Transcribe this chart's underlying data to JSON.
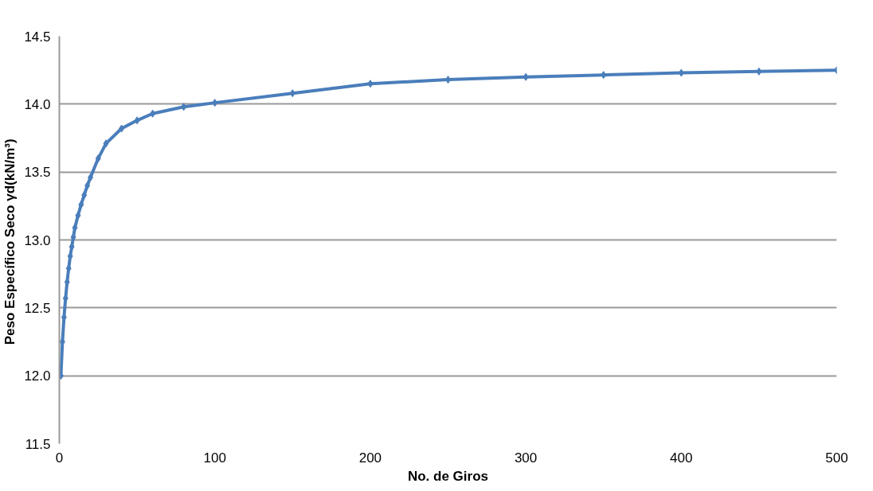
{
  "chart_data": {
    "type": "line",
    "xlabel": "No. de Giros",
    "ylabel": "Peso Específico  Seco γd(kN/m³)",
    "x": [
      1,
      2,
      3,
      4,
      5,
      6,
      7,
      8,
      9,
      10,
      12,
      14,
      16,
      18,
      20,
      25,
      30,
      40,
      50,
      60,
      80,
      100,
      150,
      200,
      250,
      300,
      350,
      400,
      450,
      500
    ],
    "series": [
      {
        "color": "#4a7ebb",
        "values": [
          12.0,
          12.25,
          12.43,
          12.57,
          12.69,
          12.79,
          12.88,
          12.95,
          13.02,
          13.09,
          13.18,
          13.26,
          13.33,
          13.4,
          13.46,
          13.6,
          13.71,
          13.82,
          13.88,
          13.93,
          13.98,
          14.01,
          14.08,
          14.15,
          14.18,
          14.2,
          14.215,
          14.23,
          14.24,
          14.25
        ]
      }
    ],
    "xlim": [
      0,
      500
    ],
    "ylim": [
      11.5,
      14.5
    ],
    "xticks": [
      0,
      100,
      200,
      300,
      400,
      500
    ],
    "yticks": [
      {
        "value": 11.5,
        "label": "11.5"
      },
      {
        "value": 12,
        "label": "12.0"
      },
      {
        "value": 12.5,
        "label": "12.5"
      },
      {
        "value": 13,
        "label": "13.0"
      },
      {
        "value": 13.5,
        "label": "13.5"
      },
      {
        "value": 14,
        "label": "14.0"
      },
      {
        "value": 14.5,
        "label": "14.5"
      }
    ],
    "grid": "y",
    "marker": "diamond",
    "line_style": "solid"
  }
}
